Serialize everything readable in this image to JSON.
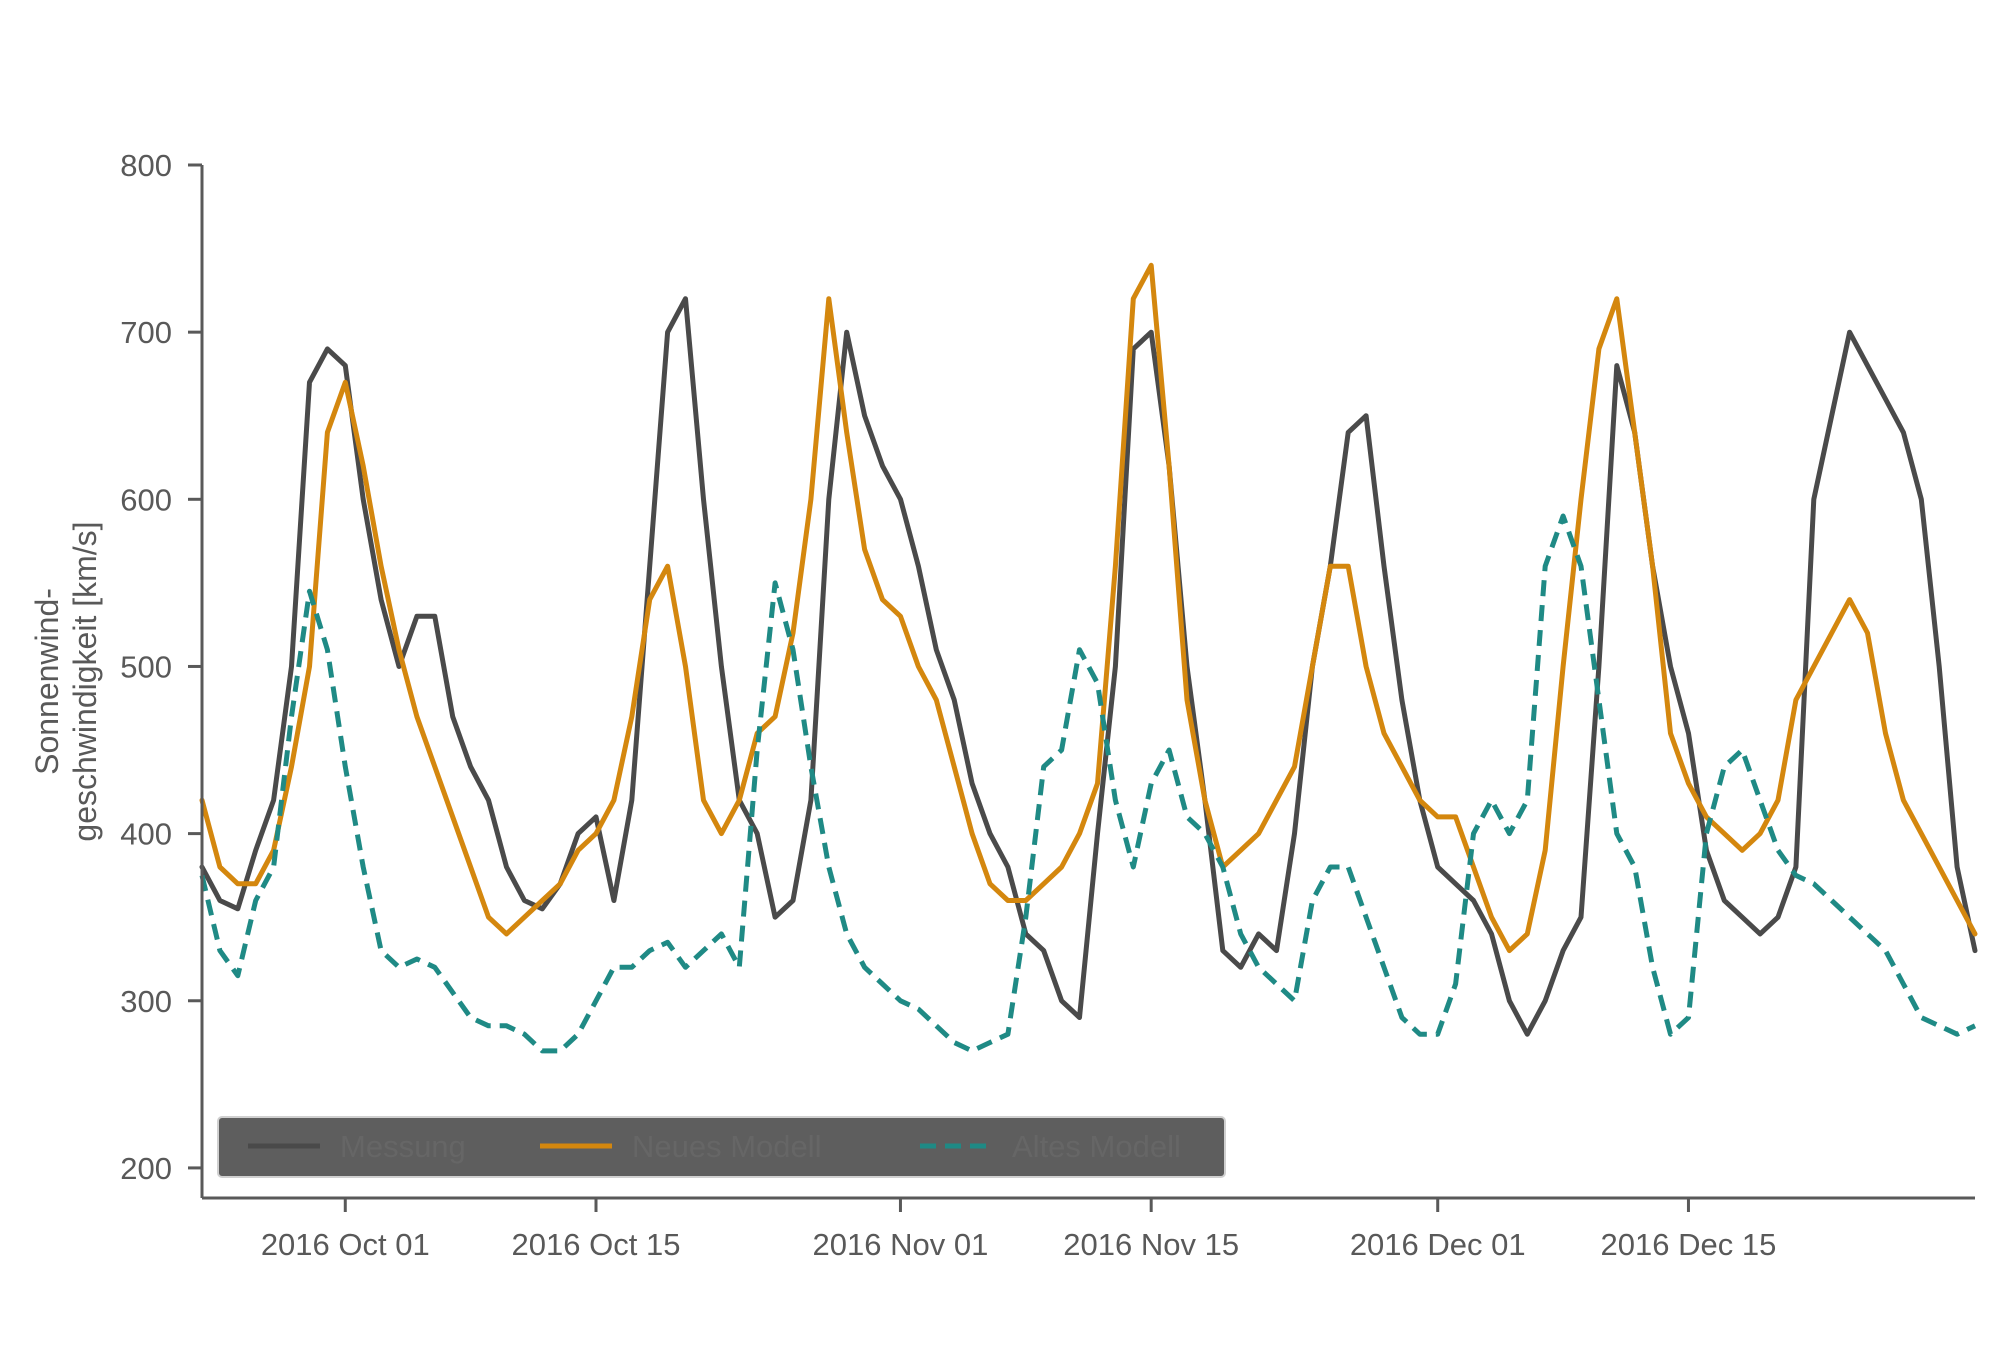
{
  "chart_data": {
    "type": "line",
    "title": "",
    "ylabel": [
      "Sonnenwind-",
      "geschwindigkeit [km/s]"
    ],
    "xlabel": "",
    "x_type": "date",
    "xlim": [
      "2016-09-23",
      "2016-12-31"
    ],
    "ylim": [
      182,
      800
    ],
    "y_ticks": [
      200,
      300,
      400,
      500,
      600,
      700,
      800
    ],
    "x_ticks": [
      {
        "date": "2016-10-01",
        "label": "2016 Oct 01"
      },
      {
        "date": "2016-10-15",
        "label": "2016 Oct 15"
      },
      {
        "date": "2016-11-01",
        "label": "2016 Nov 01"
      },
      {
        "date": "2016-11-15",
        "label": "2016 Nov 15"
      },
      {
        "date": "2016-12-01",
        "label": "2016 Dec 01"
      },
      {
        "date": "2016-12-15",
        "label": "2016 Dec 15"
      }
    ],
    "grid": false,
    "legend_position": "lower-left",
    "colors": {
      "axis": "#595959",
      "text": "#595959",
      "legend_bg": "#5e5e5e",
      "legend_border": "#d0d0d0"
    },
    "series": [
      {
        "name": "Messung",
        "color": "#4a4a4a",
        "dash": "solid",
        "x": [
          "2016-09-23",
          "2016-09-24",
          "2016-09-25",
          "2016-09-26",
          "2016-09-27",
          "2016-09-28",
          "2016-09-29",
          "2016-09-30",
          "2016-10-01",
          "2016-10-02",
          "2016-10-03",
          "2016-10-04",
          "2016-10-05",
          "2016-10-06",
          "2016-10-07",
          "2016-10-08",
          "2016-10-09",
          "2016-10-10",
          "2016-10-11",
          "2016-10-12",
          "2016-10-13",
          "2016-10-14",
          "2016-10-15",
          "2016-10-16",
          "2016-10-17",
          "2016-10-18",
          "2016-10-19",
          "2016-10-20",
          "2016-10-21",
          "2016-10-22",
          "2016-10-23",
          "2016-10-24",
          "2016-10-25",
          "2016-10-26",
          "2016-10-27",
          "2016-10-28",
          "2016-10-29",
          "2016-10-30",
          "2016-10-31",
          "2016-11-01",
          "2016-11-02",
          "2016-11-03",
          "2016-11-04",
          "2016-11-05",
          "2016-11-06",
          "2016-11-07",
          "2016-11-08",
          "2016-11-09",
          "2016-11-10",
          "2016-11-11",
          "2016-11-12",
          "2016-11-13",
          "2016-11-14",
          "2016-11-15",
          "2016-11-16",
          "2016-11-17",
          "2016-11-18",
          "2016-11-19",
          "2016-11-20",
          "2016-11-21",
          "2016-11-22",
          "2016-11-23",
          "2016-11-24",
          "2016-11-25",
          "2016-11-26",
          "2016-11-27",
          "2016-11-28",
          "2016-11-29",
          "2016-11-30",
          "2016-12-01",
          "2016-12-02",
          "2016-12-03",
          "2016-12-04",
          "2016-12-05",
          "2016-12-06",
          "2016-12-07",
          "2016-12-08",
          "2016-12-09",
          "2016-12-10",
          "2016-12-11",
          "2016-12-12",
          "2016-12-13",
          "2016-12-14",
          "2016-12-15",
          "2016-12-16",
          "2016-12-17",
          "2016-12-18",
          "2016-12-19",
          "2016-12-20",
          "2016-12-21",
          "2016-12-22",
          "2016-12-23",
          "2016-12-24",
          "2016-12-25",
          "2016-12-26",
          "2016-12-27",
          "2016-12-28",
          "2016-12-29",
          "2016-12-30",
          "2016-12-31"
        ],
        "y": [
          380,
          360,
          355,
          390,
          420,
          500,
          670,
          690,
          680,
          600,
          540,
          500,
          530,
          530,
          470,
          440,
          420,
          380,
          360,
          355,
          370,
          400,
          410,
          360,
          420,
          560,
          700,
          720,
          600,
          500,
          420,
          400,
          350,
          360,
          420,
          600,
          700,
          650,
          620,
          600,
          560,
          510,
          480,
          430,
          400,
          380,
          340,
          330,
          300,
          290,
          400,
          500,
          690,
          700,
          620,
          500,
          420,
          330,
          320,
          340,
          330,
          400,
          500,
          560,
          640,
          650,
          560,
          480,
          420,
          380,
          370,
          360,
          340,
          300,
          280,
          300,
          330,
          350,
          500,
          680,
          640,
          560,
          500,
          460,
          390,
          360,
          350,
          340,
          350,
          380,
          600,
          650,
          700,
          680,
          660,
          640,
          600,
          500,
          380,
          330
        ]
      },
      {
        "name": "Neues Modell",
        "color": "#d4870e",
        "dash": "solid",
        "x": [
          "2016-09-23",
          "2016-09-24",
          "2016-09-25",
          "2016-09-26",
          "2016-09-27",
          "2016-09-28",
          "2016-09-29",
          "2016-09-30",
          "2016-10-01",
          "2016-10-02",
          "2016-10-03",
          "2016-10-04",
          "2016-10-05",
          "2016-10-06",
          "2016-10-07",
          "2016-10-08",
          "2016-10-09",
          "2016-10-10",
          "2016-10-11",
          "2016-10-12",
          "2016-10-13",
          "2016-10-14",
          "2016-10-15",
          "2016-10-16",
          "2016-10-17",
          "2016-10-18",
          "2016-10-19",
          "2016-10-20",
          "2016-10-21",
          "2016-10-22",
          "2016-10-23",
          "2016-10-24",
          "2016-10-25",
          "2016-10-26",
          "2016-10-27",
          "2016-10-28",
          "2016-10-29",
          "2016-10-30",
          "2016-10-31",
          "2016-11-01",
          "2016-11-02",
          "2016-11-03",
          "2016-11-04",
          "2016-11-05",
          "2016-11-06",
          "2016-11-07",
          "2016-11-08",
          "2016-11-09",
          "2016-11-10",
          "2016-11-11",
          "2016-11-12",
          "2016-11-13",
          "2016-11-14",
          "2016-11-15",
          "2016-11-16",
          "2016-11-17",
          "2016-11-18",
          "2016-11-19",
          "2016-11-20",
          "2016-11-21",
          "2016-11-22",
          "2016-11-23",
          "2016-11-24",
          "2016-11-25",
          "2016-11-26",
          "2016-11-27",
          "2016-11-28",
          "2016-11-29",
          "2016-11-30",
          "2016-12-01",
          "2016-12-02",
          "2016-12-03",
          "2016-12-04",
          "2016-12-05",
          "2016-12-06",
          "2016-12-07",
          "2016-12-08",
          "2016-12-09",
          "2016-12-10",
          "2016-12-11",
          "2016-12-12",
          "2016-12-13",
          "2016-12-14",
          "2016-12-15",
          "2016-12-16",
          "2016-12-17",
          "2016-12-18",
          "2016-12-19",
          "2016-12-20",
          "2016-12-21",
          "2016-12-22",
          "2016-12-23",
          "2016-12-24",
          "2016-12-25",
          "2016-12-26",
          "2016-12-27",
          "2016-12-28",
          "2016-12-29",
          "2016-12-30",
          "2016-12-31"
        ],
        "y": [
          420,
          380,
          370,
          370,
          390,
          440,
          500,
          640,
          670,
          620,
          560,
          510,
          470,
          440,
          410,
          380,
          350,
          340,
          350,
          360,
          370,
          390,
          400,
          420,
          470,
          540,
          560,
          500,
          420,
          400,
          420,
          460,
          470,
          520,
          600,
          720,
          640,
          570,
          540,
          530,
          500,
          480,
          440,
          400,
          370,
          360,
          360,
          370,
          380,
          400,
          430,
          560,
          720,
          740,
          620,
          480,
          420,
          380,
          390,
          400,
          420,
          440,
          500,
          560,
          560,
          500,
          460,
          440,
          420,
          410,
          410,
          380,
          350,
          330,
          340,
          390,
          500,
          600,
          690,
          720,
          640,
          560,
          460,
          430,
          410,
          400,
          390,
          400,
          420,
          480,
          500,
          520,
          540,
          520,
          460,
          420,
          400,
          380,
          360,
          340
        ]
      },
      {
        "name": "Altes Modell",
        "color": "#1f8a85",
        "dash": "dashed",
        "x": [
          "2016-09-23",
          "2016-09-24",
          "2016-09-25",
          "2016-09-26",
          "2016-09-27",
          "2016-09-28",
          "2016-09-29",
          "2016-09-30",
          "2016-10-01",
          "2016-10-02",
          "2016-10-03",
          "2016-10-04",
          "2016-10-05",
          "2016-10-06",
          "2016-10-07",
          "2016-10-08",
          "2016-10-09",
          "2016-10-10",
          "2016-10-11",
          "2016-10-12",
          "2016-10-13",
          "2016-10-14",
          "2016-10-15",
          "2016-10-16",
          "2016-10-17",
          "2016-10-18",
          "2016-10-19",
          "2016-10-20",
          "2016-10-21",
          "2016-10-22",
          "2016-10-23",
          "2016-10-24",
          "2016-10-25",
          "2016-10-26",
          "2016-10-27",
          "2016-10-28",
          "2016-10-29",
          "2016-10-30",
          "2016-10-31",
          "2016-11-01",
          "2016-11-02",
          "2016-11-03",
          "2016-11-04",
          "2016-11-05",
          "2016-11-06",
          "2016-11-07",
          "2016-11-08",
          "2016-11-09",
          "2016-11-10",
          "2016-11-11",
          "2016-11-12",
          "2016-11-13",
          "2016-11-14",
          "2016-11-15",
          "2016-11-16",
          "2016-11-17",
          "2016-11-18",
          "2016-11-19",
          "2016-11-20",
          "2016-11-21",
          "2016-11-22",
          "2016-11-23",
          "2016-11-24",
          "2016-11-25",
          "2016-11-26",
          "2016-11-27",
          "2016-11-28",
          "2016-11-29",
          "2016-11-30",
          "2016-12-01",
          "2016-12-02",
          "2016-12-03",
          "2016-12-04",
          "2016-12-05",
          "2016-12-06",
          "2016-12-07",
          "2016-12-08",
          "2016-12-09",
          "2016-12-10",
          "2016-12-11",
          "2016-12-12",
          "2016-12-13",
          "2016-12-14",
          "2016-12-15",
          "2016-12-16",
          "2016-12-17",
          "2016-12-18",
          "2016-12-19",
          "2016-12-20",
          "2016-12-21",
          "2016-12-22",
          "2016-12-23",
          "2016-12-24",
          "2016-12-25",
          "2016-12-26",
          "2016-12-27",
          "2016-12-28",
          "2016-12-29",
          "2016-12-30",
          "2016-12-31"
        ],
        "y": [
          375,
          330,
          315,
          360,
          380,
          470,
          545,
          510,
          440,
          380,
          330,
          320,
          325,
          320,
          305,
          290,
          285,
          285,
          280,
          270,
          270,
          280,
          300,
          320,
          320,
          330,
          335,
          320,
          330,
          340,
          320,
          450,
          550,
          510,
          440,
          380,
          340,
          320,
          310,
          300,
          295,
          285,
          275,
          270,
          275,
          280,
          350,
          440,
          450,
          510,
          490,
          420,
          380,
          430,
          450,
          410,
          400,
          380,
          340,
          320,
          310,
          300,
          360,
          380,
          380,
          350,
          320,
          290,
          280,
          280,
          310,
          400,
          420,
          400,
          420,
          560,
          590,
          560,
          480,
          400,
          380,
          320,
          280,
          290,
          400,
          440,
          450,
          420,
          390,
          375,
          370,
          360,
          350,
          340,
          330,
          310,
          290,
          285,
          280,
          285
        ]
      }
    ]
  }
}
